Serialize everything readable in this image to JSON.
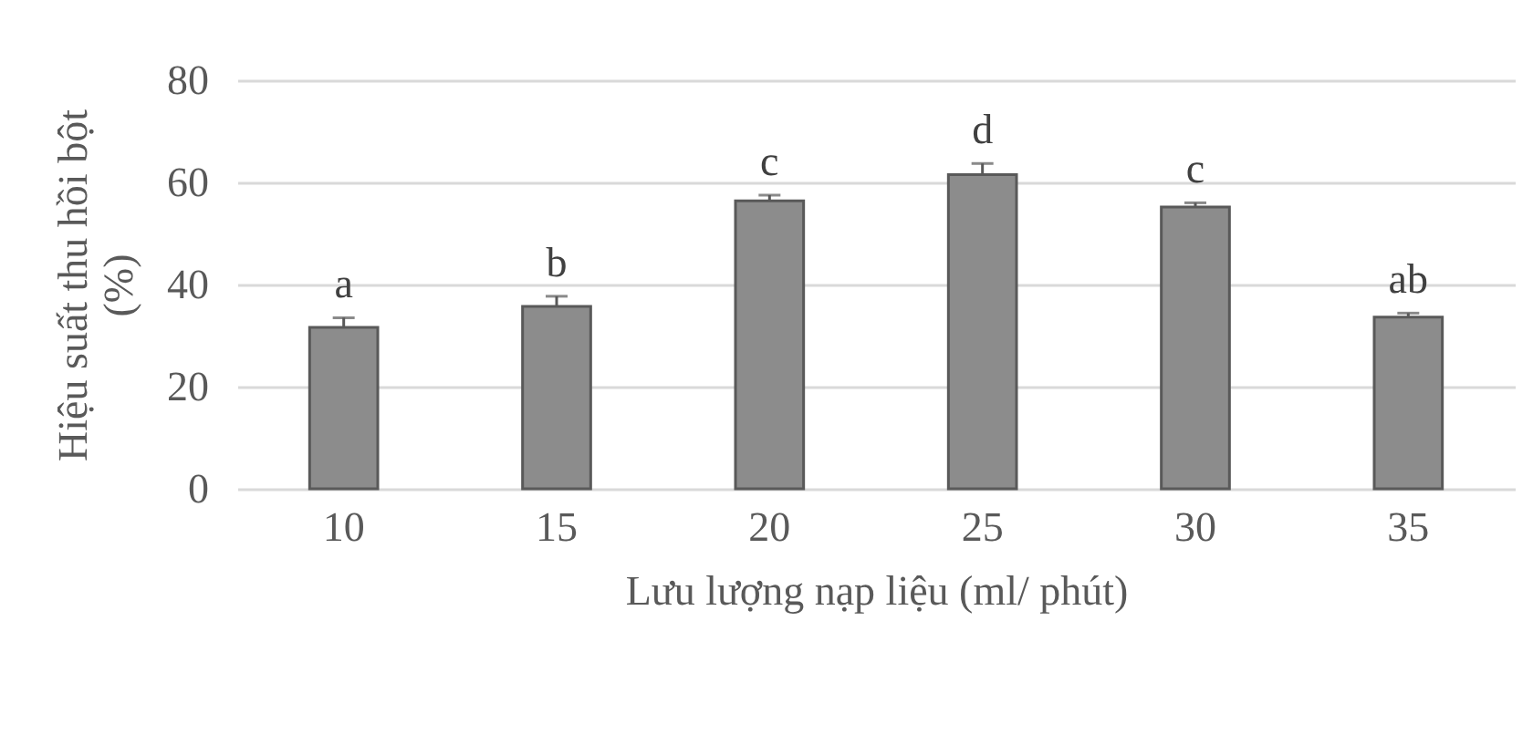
{
  "chart_data": {
    "type": "bar",
    "xlabel": "Lưu lượng nạp liệu (ml/ phút)",
    "ylabel": "Hiệu suất thu hồi bột\n(%)",
    "categories": [
      "10",
      "15",
      "20",
      "25",
      "30",
      "35"
    ],
    "values": [
      31.6,
      35.7,
      56.4,
      61.5,
      55.2,
      33.6
    ],
    "errors": [
      [
        31.6,
        33.5
      ],
      [
        35.7,
        37.7
      ],
      [
        56.4,
        57.5
      ],
      [
        61.5,
        63.7
      ],
      [
        55.2,
        56.0
      ],
      [
        33.6,
        34.4
      ]
    ],
    "color": "#8c8c8c",
    "ylim": [
      0,
      80
    ],
    "yticks": [
      0,
      20,
      40,
      60,
      80
    ],
    "grid": "y",
    "annotations": [
      {
        "text": "a",
        "x": "10",
        "y": 33.5
      },
      {
        "text": "b",
        "x": "15",
        "y": 37.7
      },
      {
        "text": "c",
        "x": "20",
        "y": 57.5
      },
      {
        "text": "d",
        "x": "25",
        "y": 63.7
      },
      {
        "text": "c",
        "x": "30",
        "y": 56.0
      },
      {
        "text": "ab",
        "x": "35",
        "y": 34.4
      }
    ]
  }
}
